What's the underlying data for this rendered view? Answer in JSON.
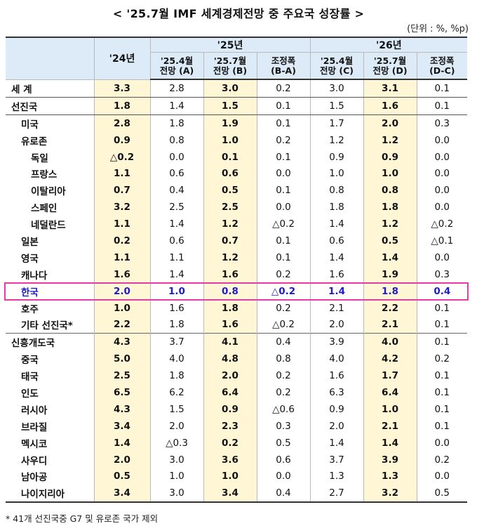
{
  "title": "< '25.7월 IMF 세계경제전망 중 주요국 성장률 >",
  "unit": "(단위 : %, %p)",
  "headers": {
    "y24": "'24년",
    "y25": "'25년",
    "y26": "'26년",
    "cols": [
      {
        "l1": "'25.4월",
        "l2": "전망 (A)"
      },
      {
        "l1": "'25.7월",
        "l2": "전망 (B)"
      },
      {
        "l1": "조정폭",
        "l2": "(B-A)"
      },
      {
        "l1": "'25.4월",
        "l2": "전망 (C)"
      },
      {
        "l1": "'25.7월",
        "l2": "전망 (D)"
      },
      {
        "l1": "조정폭",
        "l2": "(D-C)"
      }
    ]
  },
  "rows": [
    {
      "name": "세  계",
      "v": [
        "3.3",
        "2.8",
        "3.0",
        "0.2",
        "3.0",
        "3.1",
        "0.1"
      ]
    },
    {
      "name": "선진국",
      "v": [
        "1.8",
        "1.4",
        "1.5",
        "0.1",
        "1.5",
        "1.6",
        "0.1"
      ]
    },
    {
      "name": "미국",
      "v": [
        "2.8",
        "1.8",
        "1.9",
        "0.1",
        "1.7",
        "2.0",
        "0.3"
      ]
    },
    {
      "name": "유로존",
      "v": [
        "0.9",
        "0.8",
        "1.0",
        "0.2",
        "1.2",
        "1.2",
        "0.0"
      ]
    },
    {
      "name": "독일",
      "v": [
        "△0.2",
        "0.0",
        "0.1",
        "0.1",
        "0.9",
        "0.9",
        "0.0"
      ]
    },
    {
      "name": "프랑스",
      "v": [
        "1.1",
        "0.6",
        "0.6",
        "0.0",
        "1.0",
        "1.0",
        "0.0"
      ]
    },
    {
      "name": "이탈리아",
      "v": [
        "0.7",
        "0.4",
        "0.5",
        "0.1",
        "0.8",
        "0.8",
        "0.0"
      ]
    },
    {
      "name": "스페인",
      "v": [
        "3.2",
        "2.5",
        "2.5",
        "0.0",
        "1.8",
        "1.8",
        "0.0"
      ]
    },
    {
      "name": "네덜란드",
      "v": [
        "1.1",
        "1.4",
        "1.2",
        "△0.2",
        "1.4",
        "1.2",
        "△0.2"
      ]
    },
    {
      "name": "일본",
      "v": [
        "0.2",
        "0.6",
        "0.7",
        "0.1",
        "0.6",
        "0.5",
        "△0.1"
      ]
    },
    {
      "name": "영국",
      "v": [
        "1.1",
        "1.1",
        "1.2",
        "0.1",
        "1.4",
        "1.4",
        "0.0"
      ]
    },
    {
      "name": "캐나다",
      "v": [
        "1.6",
        "1.4",
        "1.6",
        "0.2",
        "1.6",
        "1.9",
        "0.3"
      ]
    },
    {
      "name": "한국",
      "v": [
        "2.0",
        "1.0",
        "0.8",
        "△0.2",
        "1.4",
        "1.8",
        "0.4"
      ]
    },
    {
      "name": "호주",
      "v": [
        "1.0",
        "1.6",
        "1.8",
        "0.2",
        "2.1",
        "2.2",
        "0.1"
      ]
    },
    {
      "name": "기타 선진국*",
      "v": [
        "2.2",
        "1.8",
        "1.6",
        "△0.2",
        "2.0",
        "2.1",
        "0.1"
      ]
    },
    {
      "name": "신흥개도국",
      "v": [
        "4.3",
        "3.7",
        "4.1",
        "0.4",
        "3.9",
        "4.0",
        "0.1"
      ]
    },
    {
      "name": "중국",
      "v": [
        "5.0",
        "4.0",
        "4.8",
        "0.8",
        "4.0",
        "4.2",
        "0.2"
      ]
    },
    {
      "name": "태국",
      "v": [
        "2.5",
        "1.8",
        "2.0",
        "0.2",
        "1.6",
        "1.7",
        "0.1"
      ]
    },
    {
      "name": "인도",
      "v": [
        "6.5",
        "6.2",
        "6.4",
        "0.2",
        "6.3",
        "6.4",
        "0.1"
      ]
    },
    {
      "name": "러시아",
      "v": [
        "4.3",
        "1.5",
        "0.9",
        "△0.6",
        "0.9",
        "1.0",
        "0.1"
      ]
    },
    {
      "name": "브라질",
      "v": [
        "3.4",
        "2.0",
        "2.3",
        "0.3",
        "2.0",
        "2.1",
        "0.1"
      ]
    },
    {
      "name": "멕시코",
      "v": [
        "1.4",
        "△0.3",
        "0.2",
        "0.5",
        "1.4",
        "1.4",
        "0.0"
      ]
    },
    {
      "name": "사우디",
      "v": [
        "2.0",
        "3.0",
        "3.6",
        "0.6",
        "3.7",
        "3.9",
        "0.2"
      ]
    },
    {
      "name": "남아공",
      "v": [
        "0.5",
        "1.0",
        "1.0",
        "0.0",
        "1.3",
        "1.3",
        "0.0"
      ]
    },
    {
      "name": "나이지리아",
      "v": [
        "3.4",
        "3.0",
        "3.4",
        "0.4",
        "2.7",
        "3.2",
        "0.5"
      ]
    }
  ],
  "footnote": "* 41개 선진국중 G7 및 유로존 국가 제외",
  "colors": {
    "header_bg": "#dcebf7",
    "highlight_col_bg": "#fef6d4",
    "korea_text": "#1c1ccf",
    "korea_box": "#e83ba4"
  }
}
